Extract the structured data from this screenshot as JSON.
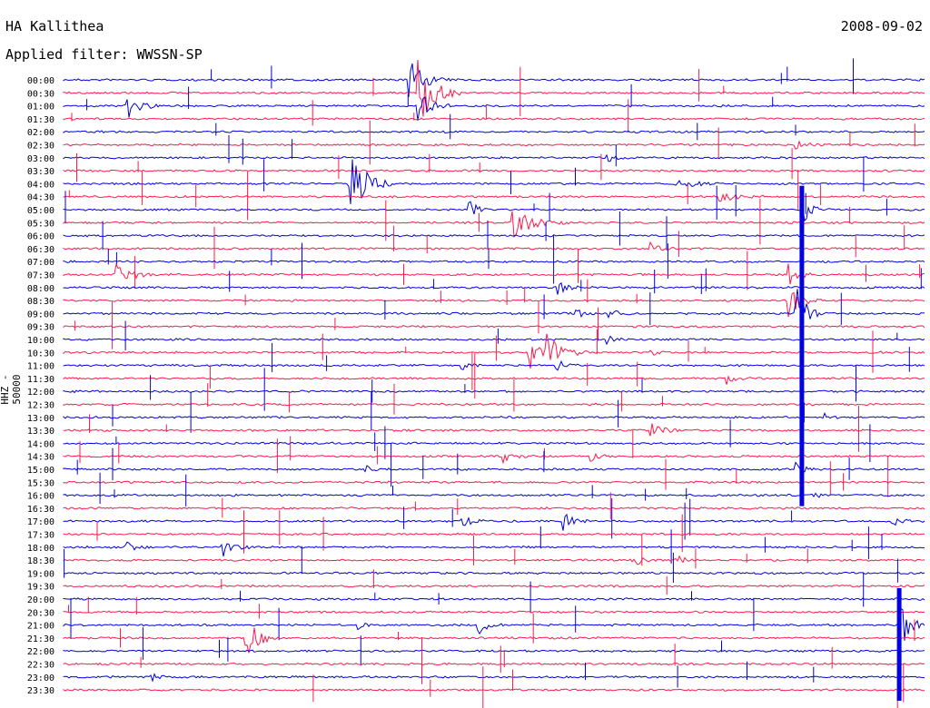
{
  "header": {
    "station": "HA Kallithea",
    "date": "2008-09-02",
    "filter": "Applied filter: WWSSN-SP"
  },
  "channel_label": "HHZ - 50000",
  "colors": {
    "odd_trace": "#0000e0",
    "even_trace": "#ff1a4a",
    "text": "#000000",
    "background": "#ffffff"
  },
  "chart_data": {
    "type": "line",
    "x": [
      "00:00",
      "00:30",
      "01:00",
      "01:30",
      "02:00",
      "02:30",
      "03:00",
      "03:30",
      "04:00",
      "04:30",
      "05:00",
      "05:30",
      "06:00",
      "06:30",
      "07:00",
      "07:30",
      "08:00",
      "08:30",
      "09:00",
      "09:30",
      "10:00",
      "10:30",
      "11:00",
      "11:30",
      "12:00",
      "12:30",
      "13:00",
      "13:30",
      "14:00",
      "14:30",
      "15:00",
      "15:30",
      "16:00",
      "16:30",
      "17:00",
      "17:30",
      "18:00",
      "18:30",
      "19:00",
      "19:30",
      "20:00",
      "20:30",
      "21:00",
      "21:30",
      "22:00",
      "22:30",
      "23:00",
      "23:30"
    ],
    "series": [],
    "events": [
      {
        "row": "00:00",
        "pos": 0.4,
        "amp": 1.8,
        "dur": 0.05
      },
      {
        "row": "00:30",
        "pos": 0.41,
        "amp": 3.5,
        "dur": 0.05
      },
      {
        "row": "01:00",
        "pos": 0.07,
        "amp": 1.6,
        "dur": 0.04
      },
      {
        "row": "01:00",
        "pos": 0.41,
        "amp": 1.4,
        "dur": 0.04
      },
      {
        "row": "02:30",
        "pos": 0.85,
        "amp": 0.4,
        "dur": 0.04
      },
      {
        "row": "03:00",
        "pos": 0.63,
        "amp": 0.4,
        "dur": 0.03
      },
      {
        "row": "04:00",
        "pos": 0.33,
        "amp": 3.5,
        "dur": 0.05
      },
      {
        "row": "04:00",
        "pos": 0.71,
        "amp": 0.6,
        "dur": 0.05
      },
      {
        "row": "04:30",
        "pos": 0.76,
        "amp": 0.5,
        "dur": 0.06
      },
      {
        "row": "05:00",
        "pos": 0.86,
        "amp": 1.0,
        "dur": 0.03
      },
      {
        "row": "05:00",
        "pos": 0.47,
        "amp": 1.0,
        "dur": 0.03
      },
      {
        "row": "05:30",
        "pos": 0.52,
        "amp": 1.2,
        "dur": 0.07
      },
      {
        "row": "06:30",
        "pos": 0.68,
        "amp": 0.5,
        "dur": 0.03
      },
      {
        "row": "07:30",
        "pos": 0.06,
        "amp": 0.8,
        "dur": 0.06
      },
      {
        "row": "07:30",
        "pos": 0.84,
        "amp": 1.3,
        "dur": 0.03
      },
      {
        "row": "08:00",
        "pos": 0.57,
        "amp": 0.8,
        "dur": 0.03
      },
      {
        "row": "08:30",
        "pos": 0.84,
        "amp": 1.5,
        "dur": 0.04
      },
      {
        "row": "09:00",
        "pos": 0.59,
        "amp": 0.6,
        "dur": 0.03
      },
      {
        "row": "09:00",
        "pos": 0.63,
        "amp": 0.6,
        "dur": 0.03
      },
      {
        "row": "09:00",
        "pos": 0.85,
        "amp": 3.0,
        "dur": 0.03
      },
      {
        "row": "10:00",
        "pos": 0.63,
        "amp": 0.4,
        "dur": 0.03
      },
      {
        "row": "10:30",
        "pos": 0.54,
        "amp": 1.8,
        "dur": 0.03
      },
      {
        "row": "10:30",
        "pos": 0.56,
        "amp": 1.6,
        "dur": 0.05
      },
      {
        "row": "10:30",
        "pos": 0.68,
        "amp": 0.5,
        "dur": 0.02
      },
      {
        "row": "11:00",
        "pos": 0.46,
        "amp": 0.6,
        "dur": 0.03
      },
      {
        "row": "11:00",
        "pos": 0.57,
        "amp": 0.7,
        "dur": 0.03
      },
      {
        "row": "11:30",
        "pos": 0.77,
        "amp": 0.5,
        "dur": 0.03
      },
      {
        "row": "13:00",
        "pos": 0.88,
        "amp": 0.5,
        "dur": 0.02
      },
      {
        "row": "13:30",
        "pos": 0.68,
        "amp": 0.6,
        "dur": 0.04
      },
      {
        "row": "14:30",
        "pos": 0.51,
        "amp": 0.5,
        "dur": 0.04
      },
      {
        "row": "14:30",
        "pos": 0.61,
        "amp": 0.5,
        "dur": 0.03
      },
      {
        "row": "15:00",
        "pos": 0.35,
        "amp": 0.4,
        "dur": 0.02
      },
      {
        "row": "15:00",
        "pos": 0.85,
        "amp": 0.6,
        "dur": 0.03
      },
      {
        "row": "16:00",
        "pos": 0.87,
        "amp": 0.8,
        "dur": 0.02
      },
      {
        "row": "17:00",
        "pos": 0.46,
        "amp": 0.7,
        "dur": 0.03
      },
      {
        "row": "17:00",
        "pos": 0.58,
        "amp": 0.8,
        "dur": 0.03
      },
      {
        "row": "17:00",
        "pos": 0.96,
        "amp": 0.5,
        "dur": 0.03
      },
      {
        "row": "18:00",
        "pos": 0.07,
        "amp": 0.6,
        "dur": 0.03
      },
      {
        "row": "18:00",
        "pos": 0.18,
        "amp": 1.2,
        "dur": 0.04
      },
      {
        "row": "18:30",
        "pos": 0.66,
        "amp": 0.5,
        "dur": 0.04
      },
      {
        "row": "18:30",
        "pos": 0.71,
        "amp": 0.5,
        "dur": 0.03
      },
      {
        "row": "21:00",
        "pos": 0.34,
        "amp": 0.5,
        "dur": 0.02
      },
      {
        "row": "21:00",
        "pos": 0.48,
        "amp": 0.9,
        "dur": 0.03
      },
      {
        "row": "21:00",
        "pos": 0.97,
        "amp": 2.0,
        "dur": 0.04
      },
      {
        "row": "21:30",
        "pos": 0.21,
        "amp": 2.0,
        "dur": 0.04
      },
      {
        "row": "23:00",
        "pos": 0.1,
        "amp": 0.5,
        "dur": 0.02
      }
    ],
    "big_quakes": [
      {
        "pos": 0.857,
        "from_row": "04:30",
        "to_row": "16:00"
      },
      {
        "pos": 0.97,
        "from_row": "20:00",
        "to_row": "23:30"
      }
    ]
  }
}
